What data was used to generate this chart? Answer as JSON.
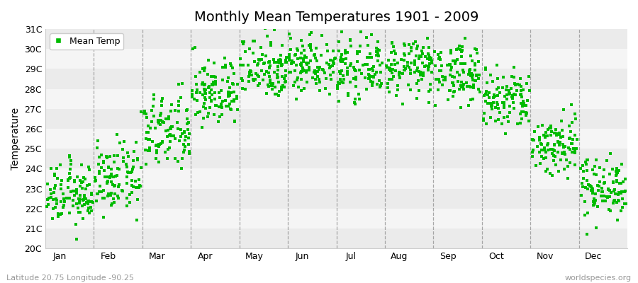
{
  "title": "Monthly Mean Temperatures 1901 - 2009",
  "ylabel": "Temperature",
  "subtitle_left": "Latitude 20.75 Longitude -90.25",
  "subtitle_right": "worldspecies.org",
  "ylim": [
    20,
    31
  ],
  "yticks": [
    20,
    21,
    22,
    23,
    24,
    25,
    26,
    27,
    28,
    29,
    30,
    31
  ],
  "ytick_labels": [
    "20C",
    "21C",
    "22C",
    "23C",
    "24C",
    "25C",
    "26C",
    "27C",
    "28C",
    "29C",
    "30C",
    "31C"
  ],
  "months": [
    "Jan",
    "Feb",
    "Mar",
    "Apr",
    "May",
    "Jun",
    "Jul",
    "Aug",
    "Sep",
    "Oct",
    "Nov",
    "Dec"
  ],
  "n_years": 109,
  "mean_temps": [
    22.7,
    23.5,
    25.8,
    27.8,
    29.1,
    29.3,
    29.0,
    29.1,
    28.8,
    27.4,
    25.2,
    23.1
  ],
  "std_temps": [
    0.75,
    0.85,
    0.95,
    0.85,
    0.8,
    0.75,
    0.7,
    0.7,
    0.72,
    0.8,
    0.8,
    0.75
  ],
  "marker_color": "#00BB00",
  "marker_size": 9,
  "bg_color": "#FFFFFF",
  "band_colors": [
    "#EBEBEB",
    "#F8F8F8",
    "#EBEBEB",
    "#F8F8F8",
    "#EBEBEB",
    "#F8F8F8",
    "#EBEBEB",
    "#F8F8F8",
    "#EBEBEB",
    "#F8F8F8",
    "#EBEBEB"
  ],
  "vline_color": "#888888",
  "title_fontsize": 14,
  "axis_fontsize": 10,
  "tick_fontsize": 9,
  "legend_fontsize": 9
}
